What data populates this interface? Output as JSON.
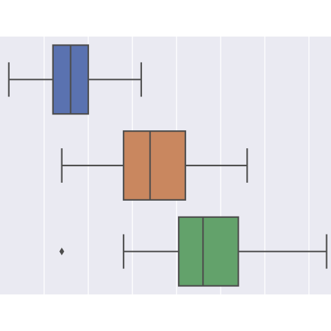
{
  "chart_data": {
    "type": "boxplot",
    "orientation": "horizontal",
    "title": "",
    "xlabel": "",
    "ylabel": "",
    "xlim": [
      0,
      7.5
    ],
    "grid": true,
    "style": "seaborn-darkgrid",
    "background_color": "#eaeaf2",
    "grid_color": "#ffffff",
    "line_color": "#4d4d4d",
    "series": [
      {
        "color": "#5a72b0",
        "whisker_low": 0.2,
        "q1": 1.2,
        "median": 1.6,
        "q3": 2.0,
        "whisker_high": 3.2,
        "outliers": []
      },
      {
        "color": "#c9875f",
        "whisker_low": 1.4,
        "q1": 2.8,
        "median": 3.4,
        "q3": 4.2,
        "whisker_high": 5.6,
        "outliers": []
      },
      {
        "color": "#63a26b",
        "whisker_low": 2.8,
        "q1": 4.05,
        "median": 4.6,
        "q3": 5.4,
        "whisker_high": 7.4,
        "outliers": [
          1.4
        ]
      }
    ]
  }
}
